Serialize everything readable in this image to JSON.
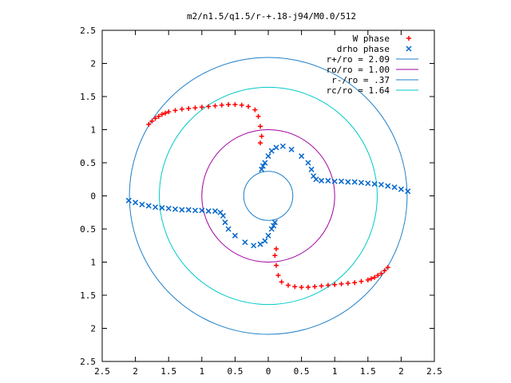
{
  "chart_data": {
    "type": "scatter",
    "title": "m2/n1.5/q1.5/r-+.18-j94/M0.0/512",
    "xlabel": "",
    "ylabel": "",
    "xlim": [
      -2.5,
      2.5
    ],
    "ylim": [
      -2.5,
      2.5
    ],
    "xtick_labels": [
      "2.5",
      "2",
      "1.5",
      "1",
      "0.5",
      "0",
      "0.5",
      "1",
      "1.5",
      "2",
      "2.5"
    ],
    "ytick_labels": [
      "2.5",
      "2",
      "1.5",
      "1",
      "0.5",
      "0",
      "0.5",
      "1",
      "1.5",
      "2",
      "2.5"
    ],
    "tick_values": [
      -2.5,
      -2,
      -1.5,
      -1,
      -0.5,
      0,
      0.5,
      1,
      1.5,
      2,
      2.5
    ],
    "grid": false,
    "legend_position": "top-right",
    "series": [
      {
        "name": "W phase",
        "marker": "plus",
        "color": "#ff0000",
        "points": [
          [
            -1.8,
            1.08
          ],
          [
            -1.75,
            1.13
          ],
          [
            -1.7,
            1.17
          ],
          [
            -1.65,
            1.2
          ],
          [
            -1.6,
            1.23
          ],
          [
            -1.55,
            1.25
          ],
          [
            -1.5,
            1.27
          ],
          [
            -1.4,
            1.29
          ],
          [
            -1.3,
            1.31
          ],
          [
            -1.2,
            1.32
          ],
          [
            -1.1,
            1.33
          ],
          [
            -1.0,
            1.34
          ],
          [
            -0.9,
            1.35
          ],
          [
            -0.8,
            1.36
          ],
          [
            -0.7,
            1.37
          ],
          [
            -0.6,
            1.38
          ],
          [
            -0.5,
            1.38
          ],
          [
            -0.4,
            1.37
          ],
          [
            -0.3,
            1.35
          ],
          [
            -0.2,
            1.3
          ],
          [
            -0.15,
            1.2
          ],
          [
            -0.12,
            1.05
          ],
          [
            -0.1,
            0.9
          ],
          [
            -0.12,
            0.8
          ],
          [
            1.8,
            -1.08
          ],
          [
            1.75,
            -1.13
          ],
          [
            1.7,
            -1.17
          ],
          [
            1.65,
            -1.2
          ],
          [
            1.6,
            -1.23
          ],
          [
            1.55,
            -1.25
          ],
          [
            1.5,
            -1.27
          ],
          [
            1.4,
            -1.29
          ],
          [
            1.3,
            -1.31
          ],
          [
            1.2,
            -1.32
          ],
          [
            1.1,
            -1.33
          ],
          [
            1.0,
            -1.34
          ],
          [
            0.9,
            -1.35
          ],
          [
            0.8,
            -1.36
          ],
          [
            0.7,
            -1.37
          ],
          [
            0.6,
            -1.38
          ],
          [
            0.5,
            -1.38
          ],
          [
            0.4,
            -1.37
          ],
          [
            0.3,
            -1.35
          ],
          [
            0.2,
            -1.3
          ],
          [
            0.15,
            -1.2
          ],
          [
            0.12,
            -1.05
          ],
          [
            0.1,
            -0.9
          ],
          [
            0.12,
            -0.8
          ]
        ]
      },
      {
        "name": "drho phase",
        "marker": "cross",
        "color": "#0066cc",
        "points": [
          [
            -2.1,
            -0.07
          ],
          [
            -2.0,
            -0.1
          ],
          [
            -1.9,
            -0.13
          ],
          [
            -1.8,
            -0.15
          ],
          [
            -1.7,
            -0.17
          ],
          [
            -1.6,
            -0.18
          ],
          [
            -1.5,
            -0.19
          ],
          [
            -1.4,
            -0.2
          ],
          [
            -1.3,
            -0.21
          ],
          [
            -1.2,
            -0.21
          ],
          [
            -1.1,
            -0.22
          ],
          [
            -1.0,
            -0.22
          ],
          [
            -0.9,
            -0.23
          ],
          [
            -0.8,
            -0.23
          ],
          [
            -0.72,
            -0.25
          ],
          [
            -0.68,
            -0.3
          ],
          [
            -0.65,
            -0.4
          ],
          [
            -0.6,
            -0.5
          ],
          [
            -0.5,
            -0.6
          ],
          [
            -0.35,
            -0.7
          ],
          [
            -0.22,
            -0.75
          ],
          [
            -0.12,
            -0.73
          ],
          [
            -0.05,
            -0.68
          ],
          [
            0.0,
            -0.6
          ],
          [
            0.05,
            -0.5
          ],
          [
            0.08,
            -0.45
          ],
          [
            0.1,
            -0.4
          ],
          [
            2.1,
            0.07
          ],
          [
            2.0,
            0.1
          ],
          [
            1.9,
            0.13
          ],
          [
            1.8,
            0.15
          ],
          [
            1.7,
            0.17
          ],
          [
            1.6,
            0.18
          ],
          [
            1.5,
            0.19
          ],
          [
            1.4,
            0.2
          ],
          [
            1.3,
            0.21
          ],
          [
            1.2,
            0.21
          ],
          [
            1.1,
            0.22
          ],
          [
            1.0,
            0.22
          ],
          [
            0.9,
            0.23
          ],
          [
            0.8,
            0.23
          ],
          [
            0.72,
            0.25
          ],
          [
            0.68,
            0.3
          ],
          [
            0.65,
            0.4
          ],
          [
            0.6,
            0.5
          ],
          [
            0.5,
            0.6
          ],
          [
            0.35,
            0.7
          ],
          [
            0.22,
            0.75
          ],
          [
            0.12,
            0.73
          ],
          [
            0.05,
            0.68
          ],
          [
            0.0,
            0.6
          ],
          [
            -0.05,
            0.5
          ],
          [
            -0.08,
            0.45
          ],
          [
            -0.1,
            0.4
          ]
        ]
      }
    ],
    "circles": [
      {
        "name": "r+/ro = 2.09",
        "radius": 2.09,
        "color": "#1e7fc8"
      },
      {
        "name": "ro/ro = 1.00",
        "radius": 1.0,
        "color": "#a000a0"
      },
      {
        "name": "r-/ro = .37",
        "radius": 0.37,
        "color": "#1e7fc8"
      },
      {
        "name": "rc/ro = 1.64",
        "radius": 1.64,
        "color": "#00c8c8"
      }
    ]
  }
}
